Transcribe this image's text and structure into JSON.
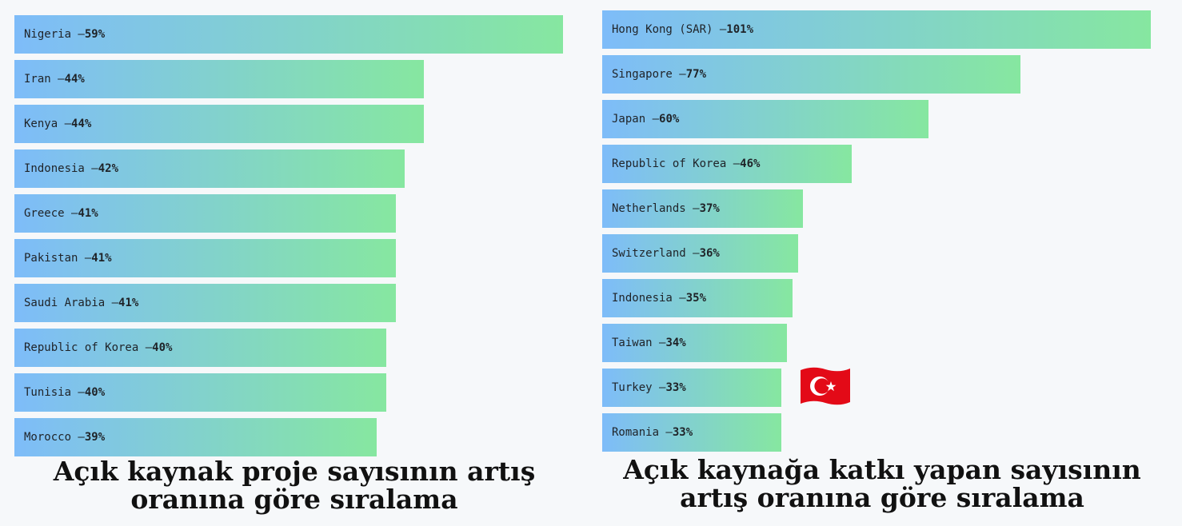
{
  "chart_data": [
    {
      "type": "bar",
      "orientation": "horizontal",
      "title": "Açık kaynak proje sayısının artış oranına göre sıralama",
      "categories": [
        "Nigeria",
        "Iran",
        "Kenya",
        "Indonesia",
        "Greece",
        "Pakistan",
        "Saudi Arabia",
        "Republic of Korea",
        "Tunisia",
        "Morocco"
      ],
      "values": [
        59,
        44,
        44,
        42,
        41,
        41,
        41,
        40,
        40,
        39
      ],
      "unit": "%",
      "xlim": [
        0,
        59
      ]
    },
    {
      "type": "bar",
      "orientation": "horizontal",
      "title": "Açık kaynağa katkı yapan sayısının artış oranına göre sıralama",
      "categories": [
        "Hong Kong (SAR)",
        "Singapore",
        "Japan",
        "Republic of Korea",
        "Netherlands",
        "Switzerland",
        "Indonesia",
        "Taiwan",
        "Turkey",
        "Romania"
      ],
      "values": [
        101,
        77,
        60,
        46,
        37,
        36,
        35,
        34,
        33,
        33
      ],
      "unit": "%",
      "xlim": [
        0,
        101
      ],
      "highlight": {
        "category": "Turkey",
        "icon": "turkey-flag-icon"
      }
    }
  ],
  "colors": {
    "bar_start": "#7ebcf9",
    "bar_end": "#86e7a0",
    "background": "#f6f8fa",
    "flag_red": "#e30a17"
  }
}
